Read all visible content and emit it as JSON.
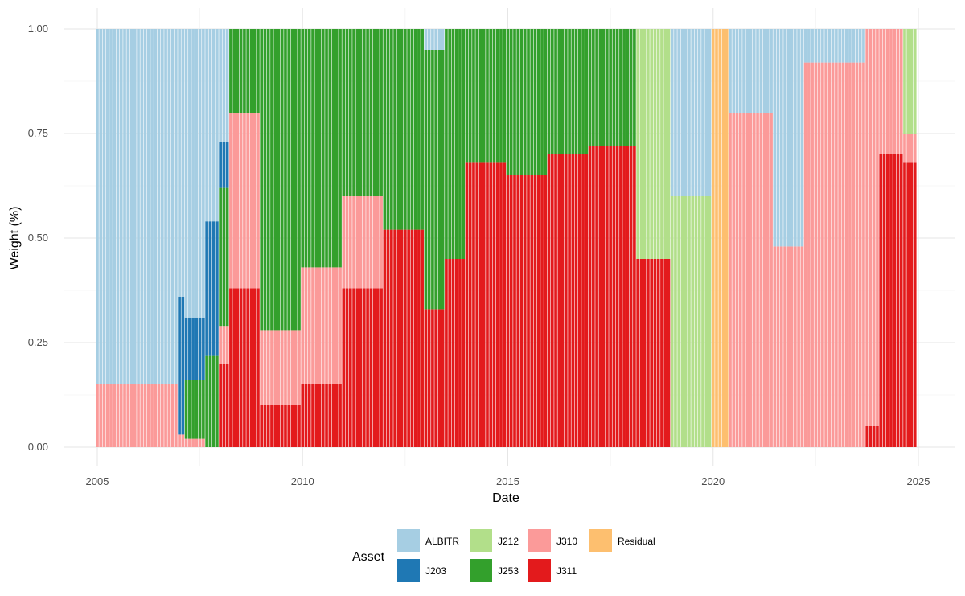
{
  "chart_data": {
    "type": "bar",
    "stacked": true,
    "xlabel": "Date",
    "ylabel": "Weight (%)",
    "xlim": [
      2005,
      2025
    ],
    "ylim": [
      0,
      1
    ],
    "x_ticks": [
      2005,
      2010,
      2015,
      2020,
      2025
    ],
    "x_tick_labels": [
      "2005",
      "2010",
      "2015",
      "2020",
      "2025"
    ],
    "y_ticks": [
      0,
      0.25,
      0.5,
      0.75,
      1
    ],
    "y_tick_labels": [
      "0.00",
      "0.25",
      "0.50",
      "0.75",
      "1.00"
    ],
    "grid": true,
    "legend": {
      "title": "Asset",
      "placement": "bottom",
      "entries": [
        {
          "name": "ALBITR",
          "color": "#A6CEE3"
        },
        {
          "name": "J203",
          "color": "#1F78B4"
        },
        {
          "name": "J212",
          "color": "#B2DF8A"
        },
        {
          "name": "J253",
          "color": "#33A02C"
        },
        {
          "name": "J310",
          "color": "#FB9A99"
        },
        {
          "name": "J311",
          "color": "#E31A1C"
        },
        {
          "name": "Residual",
          "color": "#FDBF6F"
        }
      ]
    },
    "stack_order_bottom_to_top": [
      "J311",
      "J310",
      "J253",
      "J212",
      "J203",
      "ALBITR",
      "Residual"
    ],
    "note_periods": "Monthly weights; each period holds weights for a date range (start, end).",
    "periods": [
      {
        "start": "2005-01",
        "end": "2006-12",
        "J310": 0.15,
        "ALBITR": 0.85
      },
      {
        "start": "2007-01",
        "end": "2007-02",
        "J310": 0.03,
        "J203": 0.33,
        "ALBITR": 0.64
      },
      {
        "start": "2007-03",
        "end": "2007-08",
        "J253": 0.14,
        "J310": 0.02,
        "J203": 0.15,
        "ALBITR": 0.69
      },
      {
        "start": "2007-09",
        "end": "2007-12",
        "J253": 0.22,
        "J203": 0.32,
        "ALBITR": 0.46
      },
      {
        "start": "2008-01",
        "end": "2008-03",
        "J311": 0.2,
        "J310": 0.09,
        "J253": 0.33,
        "J203": 0.11,
        "ALBITR": 0.27
      },
      {
        "start": "2008-04",
        "end": "2008-12",
        "J311": 0.38,
        "J310": 0.42,
        "J253": 0.2
      },
      {
        "start": "2009-01",
        "end": "2009-12",
        "J311": 0.1,
        "J310": 0.18,
        "J253": 0.72
      },
      {
        "start": "2010-01",
        "end": "2010-12",
        "J311": 0.15,
        "J310": 0.28,
        "J253": 0.57
      },
      {
        "start": "2011-01",
        "end": "2011-12",
        "J311": 0.38,
        "J310": 0.22,
        "J253": 0.4
      },
      {
        "start": "2012-01",
        "end": "2012-12",
        "J311": 0.52,
        "J253": 0.48
      },
      {
        "start": "2013-01",
        "end": "2013-06",
        "J311": 0.33,
        "J253": 0.62,
        "ALBITR": 0.05
      },
      {
        "start": "2013-07",
        "end": "2013-12",
        "J311": 0.45,
        "J253": 0.55
      },
      {
        "start": "2014-01",
        "end": "2014-12",
        "J311": 0.68,
        "J253": 0.32
      },
      {
        "start": "2015-01",
        "end": "2015-12",
        "J311": 0.65,
        "J253": 0.35
      },
      {
        "start": "2016-01",
        "end": "2016-12",
        "J311": 0.7,
        "J253": 0.3
      },
      {
        "start": "2017-01",
        "end": "2018-02",
        "J311": 0.72,
        "J253": 0.28
      },
      {
        "start": "2018-03",
        "end": "2018-12",
        "J311": 0.45,
        "J212": 0.55
      },
      {
        "start": "2019-01",
        "end": "2019-12",
        "J212": 0.6,
        "ALBITR": 0.4
      },
      {
        "start": "2020-01",
        "end": "2020-05",
        "Residual": 1.0
      },
      {
        "start": "2020-06",
        "end": "2021-06",
        "J310": 0.8,
        "ALBITR": 0.2
      },
      {
        "start": "2021-07",
        "end": "2022-03",
        "J310": 0.48,
        "ALBITR": 0.52
      },
      {
        "start": "2022-04",
        "end": "2023-09",
        "J310": 0.92,
        "ALBITR": 0.08
      },
      {
        "start": "2023-10",
        "end": "2024-01",
        "J311": 0.05,
        "J310": 0.95
      },
      {
        "start": "2024-02",
        "end": "2024-08",
        "J311": 0.7,
        "J310": 0.3
      },
      {
        "start": "2024-09",
        "end": "2024-12",
        "J311": 0.68,
        "J310": 0.07,
        "J212": 0.25
      }
    ]
  }
}
